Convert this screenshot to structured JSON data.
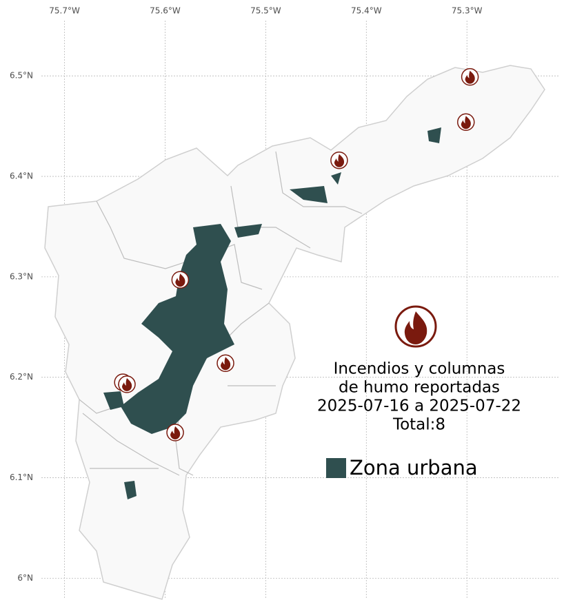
{
  "map": {
    "xlim": [
      -75.723,
      -75.209
    ],
    "ylim": [
      5.979,
      6.555
    ],
    "xticks": [
      {
        "value": -75.7,
        "label": "75.7°W"
      },
      {
        "value": -75.6,
        "label": "75.6°W"
      },
      {
        "value": -75.5,
        "label": "75.5°W"
      },
      {
        "value": -75.4,
        "label": "75.4°W"
      },
      {
        "value": -75.3,
        "label": "75.3°W"
      }
    ],
    "yticks": [
      {
        "value": 6.5,
        "label": "6.5°N"
      },
      {
        "value": 6.4,
        "label": "6.4°N"
      },
      {
        "value": 6.3,
        "label": "6.3°N"
      },
      {
        "value": 6.2,
        "label": "6.2°N"
      },
      {
        "value": 6.1,
        "label": "6.1°N"
      },
      {
        "value": 6.0,
        "label": "6°N"
      }
    ],
    "fires": [
      {
        "lon": -75.297,
        "lat": 6.499
      },
      {
        "lon": -75.301,
        "lat": 6.454
      },
      {
        "lon": -75.427,
        "lat": 6.416
      },
      {
        "lon": -75.585,
        "lat": 6.297
      },
      {
        "lon": -75.54,
        "lat": 6.214
      },
      {
        "lon": -75.642,
        "lat": 6.195
      },
      {
        "lon": -75.638,
        "lat": 6.193
      },
      {
        "lon": -75.59,
        "lat": 6.145
      }
    ],
    "fire_color": "#7a1a0e",
    "title": [
      "Incendios y columnas",
      "de humo reportadas",
      "2025-07-16 a 2025-07-22",
      "Total:8"
    ],
    "legend": {
      "label": "Zona urbana",
      "color": "#2f4f4f"
    }
  }
}
